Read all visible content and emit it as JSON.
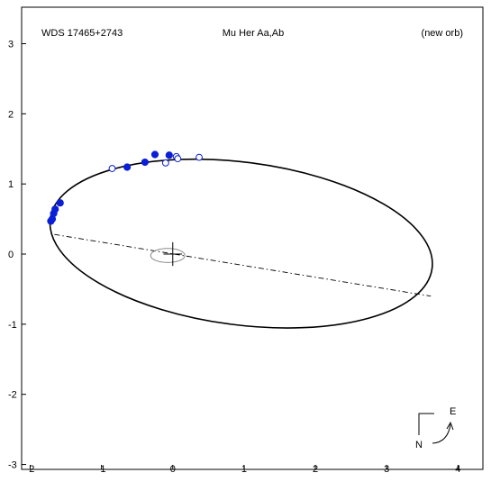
{
  "chart_data": {
    "type": "scatter",
    "header": {
      "left": "WDS 17465+2743",
      "center": "Mu Her Aa,Ab",
      "right": "(new orb)"
    },
    "x_ticks": [
      {
        "value": -2,
        "label": "-2"
      },
      {
        "value": -1,
        "label": "-1"
      },
      {
        "value": 0,
        "label": "0"
      },
      {
        "value": 1,
        "label": "1"
      },
      {
        "value": 2,
        "label": "2"
      },
      {
        "value": 3,
        "label": "3"
      },
      {
        "value": 4,
        "label": "4"
      }
    ],
    "y_ticks": [
      {
        "value": 3,
        "label": "3"
      },
      {
        "value": 2,
        "label": "2"
      },
      {
        "value": 1,
        "label": "1"
      },
      {
        "value": 0,
        "label": "0"
      },
      {
        "value": -1,
        "label": "-1"
      },
      {
        "value": -2,
        "label": "-2"
      },
      {
        "value": -3,
        "label": "-3"
      }
    ],
    "xlim": [
      -2.12,
      4.35
    ],
    "ylim": [
      -3.07,
      3.52
    ],
    "grid": false,
    "orbit_ellipse": {
      "cx": 0.96,
      "cy": 0.15,
      "rx": 2.7,
      "ry": 1.16,
      "tilt_deg": -7.4
    },
    "line_of_apsides": {
      "x": [
        -1.66,
        3.62
      ],
      "y": [
        0.28,
        -0.6
      ]
    },
    "reference_ellipse": {
      "cx": -0.07,
      "cy": -0.02,
      "rx": 0.24,
      "ry": 0.1
    },
    "origin_cross_size": 0.13,
    "observations_filled": {
      "x": [
        -1.71,
        -1.69,
        -1.67,
        -1.65,
        -1.58,
        -0.64,
        -0.39,
        -0.25,
        -0.05
      ],
      "y": [
        0.47,
        0.5,
        0.58,
        0.64,
        0.73,
        1.24,
        1.31,
        1.42,
        1.41
      ]
    },
    "observations_open": {
      "x": [
        -0.85,
        -0.1,
        0.05,
        0.07,
        0.37
      ],
      "y": [
        1.22,
        1.3,
        1.39,
        1.36,
        1.38
      ]
    },
    "compass": {
      "east_label": "E",
      "north_label": "N"
    }
  }
}
